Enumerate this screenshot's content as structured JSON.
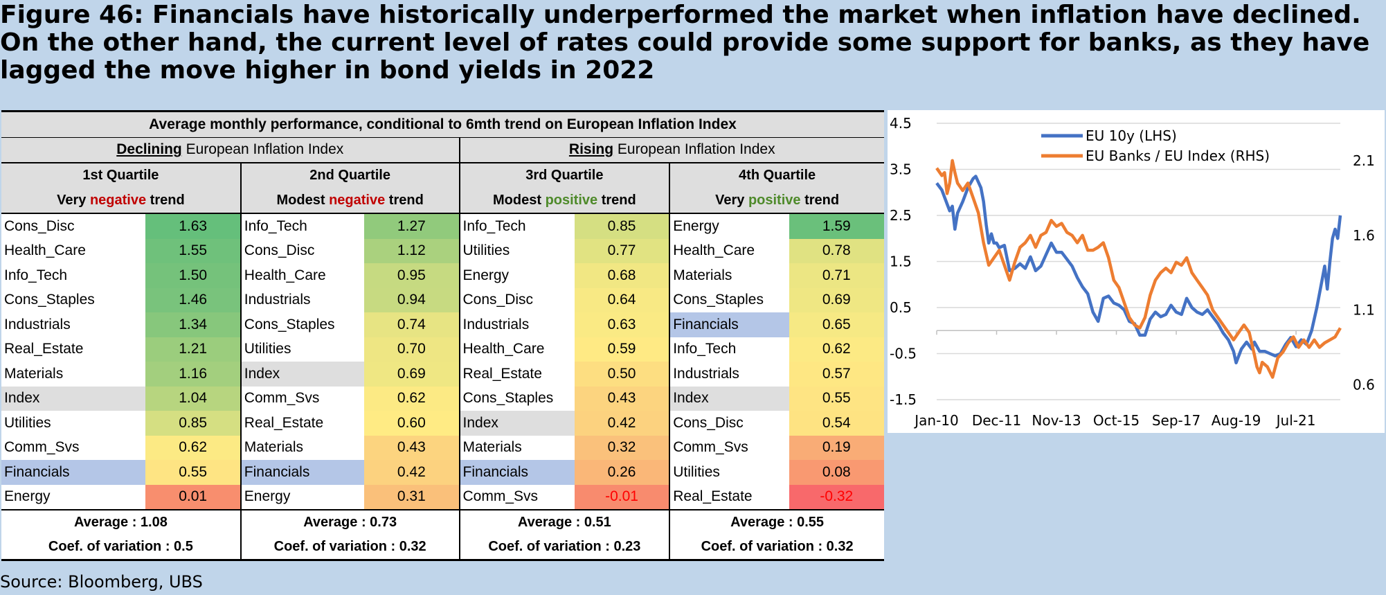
{
  "title": "Figure 46: Financials have historically underperformed the market when inflation have declined. On the other hand, the current level of rates could provide some support for banks, as they have lagged the move higher in bond yields in 2022",
  "source": "Source: Bloomberg, UBS",
  "table": {
    "header": "Average monthly performance, conditional to 6mth trend on European Inflation Index",
    "declining": {
      "word": "Declining",
      "rest": " European Inflation Index"
    },
    "rising": {
      "word": "Rising",
      "rest": " European Inflation Index"
    },
    "quartiles": [
      {
        "name": "1st Quartile",
        "pre": "Very ",
        "word": "negative",
        "post": " trend",
        "color": "red",
        "rows": [
          [
            "Cons_Disc",
            "1.63"
          ],
          [
            "Health_Care",
            "1.55"
          ],
          [
            "Info_Tech",
            "1.50"
          ],
          [
            "Cons_Staples",
            "1.46"
          ],
          [
            "Industrials",
            "1.34"
          ],
          [
            "Real_Estate",
            "1.21"
          ],
          [
            "Materials",
            "1.16"
          ],
          [
            "Index",
            "1.04"
          ],
          [
            "Utilities",
            "0.85"
          ],
          [
            "Comm_Svs",
            "0.62"
          ],
          [
            "Financials",
            "0.55"
          ],
          [
            "Energy",
            "0.01"
          ]
        ],
        "average": "Average : 1.08",
        "cov": "Coef. of variation : 0.5"
      },
      {
        "name": "2nd Quartile",
        "pre": "Modest ",
        "word": "negative",
        "post": " trend",
        "color": "red",
        "rows": [
          [
            "Info_Tech",
            "1.27"
          ],
          [
            "Cons_Disc",
            "1.12"
          ],
          [
            "Health_Care",
            "0.95"
          ],
          [
            "Industrials",
            "0.94"
          ],
          [
            "Cons_Staples",
            "0.74"
          ],
          [
            "Utilities",
            "0.70"
          ],
          [
            "Index",
            "0.69"
          ],
          [
            "Comm_Svs",
            "0.62"
          ],
          [
            "Real_Estate",
            "0.60"
          ],
          [
            "Materials",
            "0.43"
          ],
          [
            "Financials",
            "0.42"
          ],
          [
            "Energy",
            "0.31"
          ]
        ],
        "average": "Average : 0.73",
        "cov": "Coef. of variation : 0.32"
      },
      {
        "name": "3rd Quartile",
        "pre": "Modest ",
        "word": "positive",
        "post": " trend",
        "color": "green",
        "rows": [
          [
            "Info_Tech",
            "0.85"
          ],
          [
            "Utilities",
            "0.77"
          ],
          [
            "Energy",
            "0.68"
          ],
          [
            "Cons_Disc",
            "0.64"
          ],
          [
            "Industrials",
            "0.63"
          ],
          [
            "Health_Care",
            "0.59"
          ],
          [
            "Real_Estate",
            "0.50"
          ],
          [
            "Cons_Staples",
            "0.43"
          ],
          [
            "Index",
            "0.42"
          ],
          [
            "Materials",
            "0.32"
          ],
          [
            "Financials",
            "0.26"
          ],
          [
            "Comm_Svs",
            "-0.01"
          ]
        ],
        "average": "Average : 0.51",
        "cov": "Coef. of variation : 0.23"
      },
      {
        "name": "4th Quartile",
        "pre": "Very ",
        "word": "positive",
        "post": " trend",
        "color": "green",
        "rows": [
          [
            "Energy",
            "1.59"
          ],
          [
            "Health_Care",
            "0.78"
          ],
          [
            "Materials",
            "0.71"
          ],
          [
            "Cons_Staples",
            "0.69"
          ],
          [
            "Financials",
            "0.65"
          ],
          [
            "Info_Tech",
            "0.62"
          ],
          [
            "Industrials",
            "0.57"
          ],
          [
            "Index",
            "0.55"
          ],
          [
            "Cons_Disc",
            "0.54"
          ],
          [
            "Comm_Svs",
            "0.19"
          ],
          [
            "Utilities",
            "0.08"
          ],
          [
            "Real_Estate",
            "-0.32"
          ]
        ],
        "average": "Average : 0.55",
        "cov": "Coef. of variation : 0.32"
      }
    ],
    "highlight_colors": {
      "Index": "#dedede",
      "Financials": "#b4c6e7"
    }
  },
  "chart_data": {
    "type": "line",
    "title": "",
    "x_ticks": [
      "Jan-10",
      "Dec-11",
      "Nov-13",
      "Oct-15",
      "Sep-17",
      "Aug-19",
      "Jul-21"
    ],
    "y_left": {
      "ticks": [
        "4.5",
        "3.5",
        "2.5",
        "1.5",
        "0.5",
        "-0.5",
        "-1.5"
      ],
      "range": [
        -1.5,
        4.5
      ]
    },
    "y_right": {
      "ticks": [
        "2.1",
        "1.6",
        "1.1",
        "0.6"
      ],
      "range": [
        0.5,
        2.35
      ]
    },
    "legend": "top-center",
    "grid": true,
    "series": [
      {
        "name": "EU 10y (LHS)",
        "axis": "left",
        "color": "#4472c4",
        "points": [
          [
            "2010-01",
            3.2
          ],
          [
            "2010-03",
            3.05
          ],
          [
            "2010-05",
            2.75
          ],
          [
            "2010-06",
            2.6
          ],
          [
            "2010-07",
            2.7
          ],
          [
            "2010-08",
            2.2
          ],
          [
            "2010-09",
            2.55
          ],
          [
            "2010-11",
            2.8
          ],
          [
            "2011-01",
            3.1
          ],
          [
            "2011-03",
            3.3
          ],
          [
            "2011-04",
            3.35
          ],
          [
            "2011-06",
            3.1
          ],
          [
            "2011-07",
            2.8
          ],
          [
            "2011-08",
            2.3
          ],
          [
            "2011-09",
            1.9
          ],
          [
            "2011-10",
            2.1
          ],
          [
            "2011-11",
            1.9
          ],
          [
            "2011-12",
            1.9
          ],
          [
            "2012-01",
            1.8
          ],
          [
            "2012-03",
            1.85
          ],
          [
            "2012-05",
            1.3
          ],
          [
            "2012-07",
            1.35
          ],
          [
            "2012-09",
            1.45
          ],
          [
            "2012-11",
            1.35
          ],
          [
            "2013-01",
            1.6
          ],
          [
            "2013-03",
            1.3
          ],
          [
            "2013-05",
            1.4
          ],
          [
            "2013-07",
            1.65
          ],
          [
            "2013-09",
            1.9
          ],
          [
            "2013-11",
            1.7
          ],
          [
            "2014-01",
            1.7
          ],
          [
            "2014-03",
            1.55
          ],
          [
            "2014-05",
            1.4
          ],
          [
            "2014-07",
            1.15
          ],
          [
            "2014-09",
            0.95
          ],
          [
            "2014-11",
            0.8
          ],
          [
            "2015-01",
            0.4
          ],
          [
            "2015-03",
            0.2
          ],
          [
            "2015-05",
            0.7
          ],
          [
            "2015-07",
            0.75
          ],
          [
            "2015-09",
            0.6
          ],
          [
            "2015-11",
            0.55
          ],
          [
            "2016-01",
            0.45
          ],
          [
            "2016-03",
            0.2
          ],
          [
            "2016-05",
            0.15
          ],
          [
            "2016-07",
            -0.1
          ],
          [
            "2016-09",
            -0.1
          ],
          [
            "2016-11",
            0.25
          ],
          [
            "2017-01",
            0.4
          ],
          [
            "2017-03",
            0.3
          ],
          [
            "2017-05",
            0.35
          ],
          [
            "2017-07",
            0.55
          ],
          [
            "2017-09",
            0.4
          ],
          [
            "2017-11",
            0.35
          ],
          [
            "2018-01",
            0.7
          ],
          [
            "2018-03",
            0.5
          ],
          [
            "2018-05",
            0.4
          ],
          [
            "2018-07",
            0.35
          ],
          [
            "2018-09",
            0.45
          ],
          [
            "2018-11",
            0.3
          ],
          [
            "2019-01",
            0.15
          ],
          [
            "2019-03",
            -0.05
          ],
          [
            "2019-05",
            -0.2
          ],
          [
            "2019-07",
            -0.45
          ],
          [
            "2019-08",
            -0.7
          ],
          [
            "2019-10",
            -0.4
          ],
          [
            "2019-12",
            -0.25
          ],
          [
            "2020-02",
            -0.4
          ],
          [
            "2020-03",
            -0.25
          ],
          [
            "2020-05",
            -0.45
          ],
          [
            "2020-07",
            -0.45
          ],
          [
            "2020-09",
            -0.5
          ],
          [
            "2020-11",
            -0.55
          ],
          [
            "2021-01",
            -0.5
          ],
          [
            "2021-03",
            -0.3
          ],
          [
            "2021-05",
            -0.15
          ],
          [
            "2021-07",
            -0.35
          ],
          [
            "2021-09",
            -0.2
          ],
          [
            "2021-11",
            -0.3
          ],
          [
            "2022-01",
            0.0
          ],
          [
            "2022-03",
            0.5
          ],
          [
            "2022-05",
            1.1
          ],
          [
            "2022-06",
            1.4
          ],
          [
            "2022-07",
            0.9
          ],
          [
            "2022-08",
            1.5
          ],
          [
            "2022-09",
            2.0
          ],
          [
            "2022-10",
            2.2
          ],
          [
            "2022-11",
            2.0
          ],
          [
            "2022-12",
            2.5
          ]
        ]
      },
      {
        "name": "EU Banks / EU Index (RHS)",
        "axis": "right",
        "color": "#ed7d31",
        "points": [
          [
            "2010-01",
            2.05
          ],
          [
            "2010-03",
            2.0
          ],
          [
            "2010-04",
            2.02
          ],
          [
            "2010-05",
            1.88
          ],
          [
            "2010-06",
            1.95
          ],
          [
            "2010-07",
            2.1
          ],
          [
            "2010-08",
            2.02
          ],
          [
            "2010-09",
            1.95
          ],
          [
            "2010-11",
            1.9
          ],
          [
            "2011-01",
            1.95
          ],
          [
            "2011-03",
            1.85
          ],
          [
            "2011-05",
            1.75
          ],
          [
            "2011-07",
            1.55
          ],
          [
            "2011-09",
            1.4
          ],
          [
            "2011-11",
            1.45
          ],
          [
            "2012-01",
            1.5
          ],
          [
            "2012-03",
            1.4
          ],
          [
            "2012-05",
            1.3
          ],
          [
            "2012-07",
            1.42
          ],
          [
            "2012-09",
            1.52
          ],
          [
            "2012-11",
            1.55
          ],
          [
            "2013-01",
            1.6
          ],
          [
            "2013-03",
            1.52
          ],
          [
            "2013-05",
            1.6
          ],
          [
            "2013-07",
            1.62
          ],
          [
            "2013-09",
            1.7
          ],
          [
            "2013-11",
            1.66
          ],
          [
            "2014-01",
            1.68
          ],
          [
            "2014-03",
            1.62
          ],
          [
            "2014-05",
            1.6
          ],
          [
            "2014-07",
            1.55
          ],
          [
            "2014-09",
            1.6
          ],
          [
            "2014-11",
            1.5
          ],
          [
            "2015-01",
            1.5
          ],
          [
            "2015-03",
            1.52
          ],
          [
            "2015-05",
            1.55
          ],
          [
            "2015-07",
            1.45
          ],
          [
            "2015-09",
            1.3
          ],
          [
            "2015-11",
            1.25
          ],
          [
            "2016-01",
            1.15
          ],
          [
            "2016-03",
            1.05
          ],
          [
            "2016-05",
            1.0
          ],
          [
            "2016-07",
            0.98
          ],
          [
            "2016-09",
            1.05
          ],
          [
            "2016-11",
            1.2
          ],
          [
            "2017-01",
            1.3
          ],
          [
            "2017-03",
            1.35
          ],
          [
            "2017-05",
            1.38
          ],
          [
            "2017-07",
            1.35
          ],
          [
            "2017-09",
            1.42
          ],
          [
            "2017-11",
            1.4
          ],
          [
            "2018-01",
            1.45
          ],
          [
            "2018-03",
            1.35
          ],
          [
            "2018-05",
            1.3
          ],
          [
            "2018-07",
            1.25
          ],
          [
            "2018-09",
            1.2
          ],
          [
            "2018-11",
            1.1
          ],
          [
            "2019-01",
            1.05
          ],
          [
            "2019-03",
            1.0
          ],
          [
            "2019-05",
            0.95
          ],
          [
            "2019-07",
            0.9
          ],
          [
            "2019-09",
            0.95
          ],
          [
            "2019-11",
            1.0
          ],
          [
            "2020-01",
            0.95
          ],
          [
            "2020-03",
            0.8
          ],
          [
            "2020-04",
            0.72
          ],
          [
            "2020-05",
            0.68
          ],
          [
            "2020-06",
            0.75
          ],
          [
            "2020-08",
            0.72
          ],
          [
            "2020-10",
            0.65
          ],
          [
            "2020-12",
            0.78
          ],
          [
            "2021-02",
            0.82
          ],
          [
            "2021-04",
            0.88
          ],
          [
            "2021-06",
            0.92
          ],
          [
            "2021-08",
            0.85
          ],
          [
            "2021-10",
            0.9
          ],
          [
            "2021-12",
            0.85
          ],
          [
            "2022-02",
            0.9
          ],
          [
            "2022-04",
            0.85
          ],
          [
            "2022-06",
            0.88
          ],
          [
            "2022-08",
            0.9
          ],
          [
            "2022-10",
            0.92
          ],
          [
            "2022-12",
            0.98
          ]
        ]
      }
    ]
  }
}
